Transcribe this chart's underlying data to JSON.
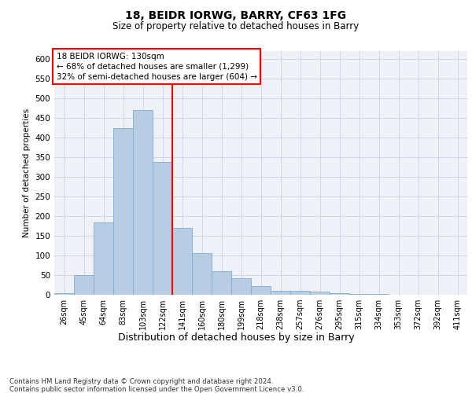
{
  "title1": "18, BEIDR IORWG, BARRY, CF63 1FG",
  "title2": "Size of property relative to detached houses in Barry",
  "xlabel": "Distribution of detached houses by size in Barry",
  "ylabel": "Number of detached properties",
  "categories": [
    "26sqm",
    "45sqm",
    "64sqm",
    "83sqm",
    "103sqm",
    "122sqm",
    "141sqm",
    "160sqm",
    "180sqm",
    "199sqm",
    "218sqm",
    "238sqm",
    "257sqm",
    "276sqm",
    "295sqm",
    "315sqm",
    "334sqm",
    "353sqm",
    "372sqm",
    "392sqm",
    "411sqm"
  ],
  "values": [
    5,
    50,
    185,
    425,
    470,
    338,
    170,
    107,
    60,
    43,
    22,
    10,
    10,
    8,
    5,
    3,
    2,
    1,
    1,
    1,
    1
  ],
  "bar_color": "#b8cce4",
  "bar_edge_color": "#7bafd4",
  "annotation_box_text": "18 BEIDR IORWG: 130sqm\n← 68% of detached houses are smaller (1,299)\n32% of semi-detached houses are larger (604) →",
  "ylim": [
    0,
    620
  ],
  "yticks": [
    0,
    50,
    100,
    150,
    200,
    250,
    300,
    350,
    400,
    450,
    500,
    550,
    600
  ],
  "footer": "Contains HM Land Registry data © Crown copyright and database right 2024.\nContains public sector information licensed under the Open Government Licence v3.0.",
  "bg_color": "#eef2f8",
  "grid_color": "#c8d4e8"
}
